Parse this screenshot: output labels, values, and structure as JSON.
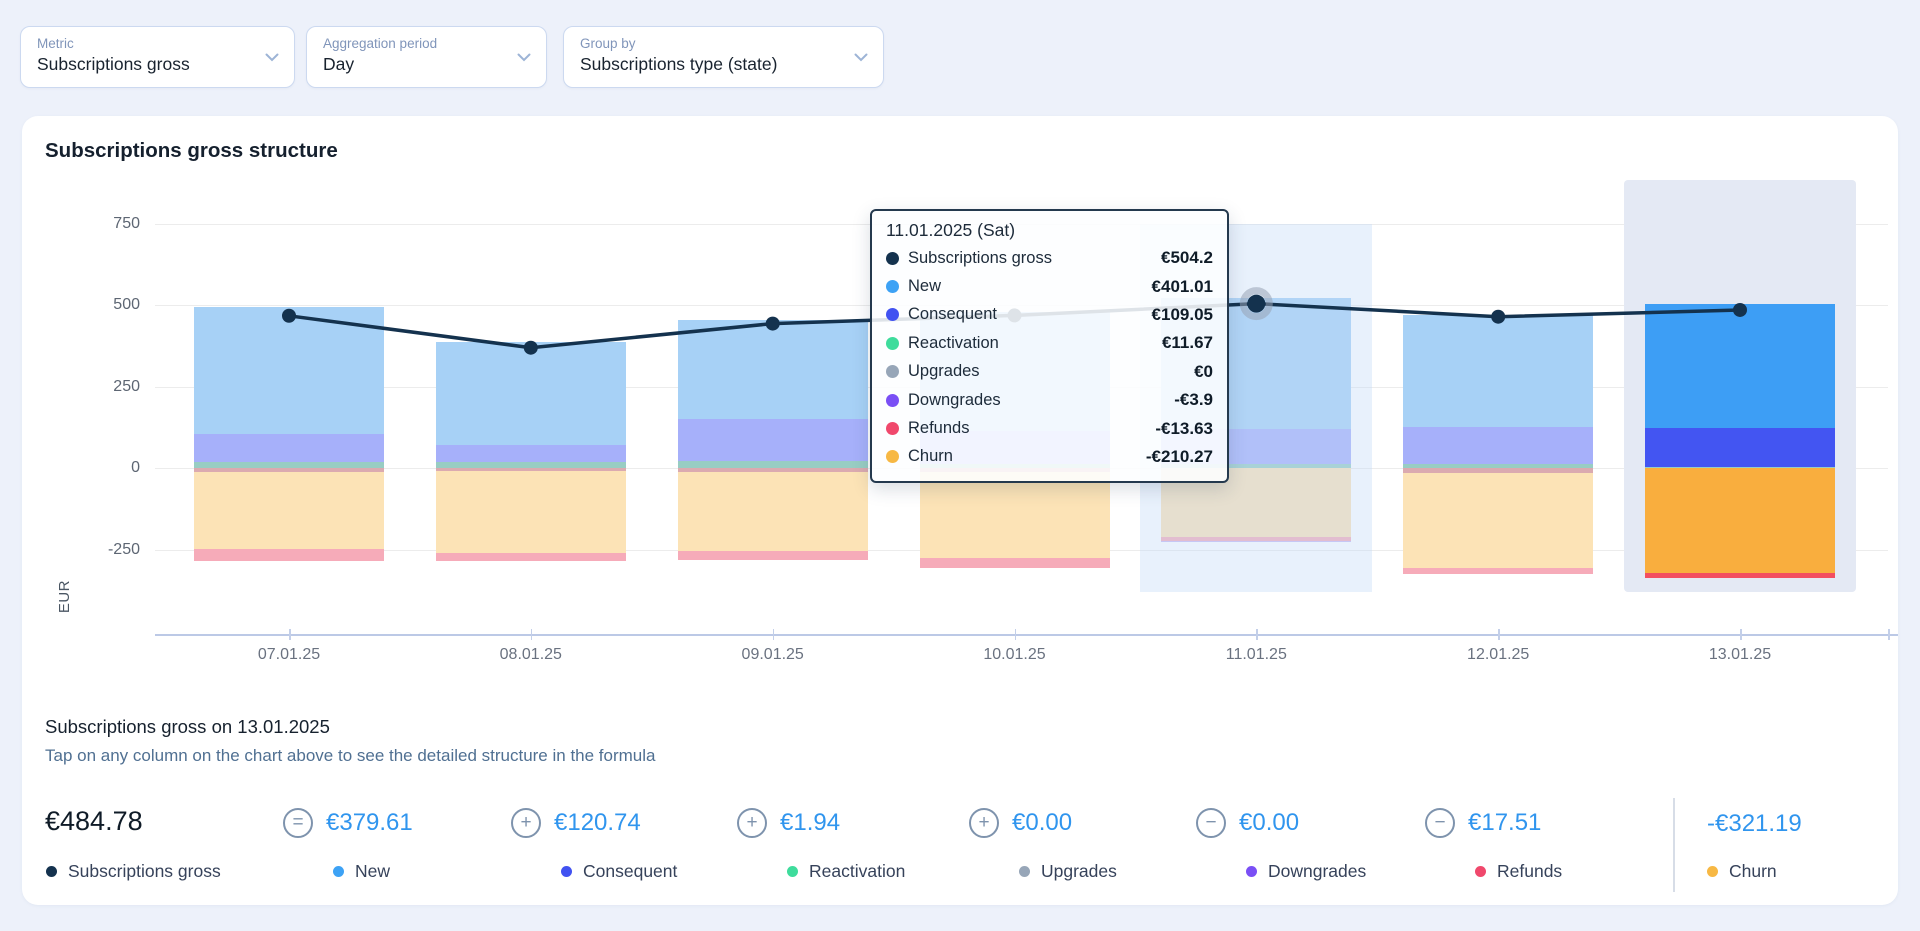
{
  "filters": [
    {
      "label": "Metric",
      "value": "Subscriptions gross"
    },
    {
      "label": "Aggregation period",
      "value": "Day"
    },
    {
      "label": "Group by",
      "value": "Subscriptions type (state)"
    }
  ],
  "card": {
    "title": "Subscriptions gross structure"
  },
  "chart_data": {
    "type": "bar",
    "stacked": true,
    "line_overlay": "Subscriptions gross",
    "categories": [
      "07.01.25",
      "08.01.25",
      "09.01.25",
      "10.01.25",
      "11.01.25",
      "12.01.25",
      "13.01.25"
    ],
    "ylabel": "EUR",
    "yticks": [
      750,
      500,
      250,
      0,
      -250
    ],
    "grid": true,
    "hovered_index": 4,
    "selected_index": 6,
    "line": {
      "name": "Subscriptions gross",
      "values": [
        467,
        369,
        443,
        468,
        504.2,
        464,
        484.78
      ]
    },
    "series_colors": {
      "gross": "#14324e",
      "new": "#3da2f5",
      "consequent": "#4152f1",
      "reactivation": "#3edc9c",
      "upgrades": "#97a6b8",
      "downgrades": "#7a4ff5",
      "refunds": "#f0486c",
      "churn": "#f7b844"
    },
    "bar_palette": {
      "new_pale": "#a7d1f6",
      "consequent_pale": "#a6b0fa",
      "reactivation_pale": "#98cdc3",
      "downgrades_rose": "#dbaab0",
      "downgrades_pale": "#c9bcf4",
      "churn_pale": "#fce3b6",
      "refunds_pale": "#f6abb9",
      "new_bright": "#3d9ef5",
      "consequent_bright": "#4355f2",
      "churn_bright": "#f9ae3e",
      "refunds_bright": "#f34e60"
    },
    "bars": [
      {
        "date": "07.01.25",
        "segments": [
          [
            "new",
            493,
            103,
            "new_pale"
          ],
          [
            "consequent",
            103,
            19,
            "consequent_pale"
          ],
          [
            "reactivation",
            19,
            0,
            "reactivation_pale"
          ],
          [
            "downgrades",
            0,
            -12,
            "downgrades_rose"
          ],
          [
            "churn",
            -12,
            -248,
            "churn_pale"
          ],
          [
            "refunds",
            -248,
            -285,
            "refunds_pale"
          ]
        ]
      },
      {
        "date": "08.01.25",
        "segments": [
          [
            "new",
            387,
            72,
            "new_pale"
          ],
          [
            "consequent",
            72,
            18,
            "consequent_pale"
          ],
          [
            "reactivation",
            18,
            0,
            "reactivation_pale"
          ],
          [
            "downgrades",
            0,
            -10,
            "downgrades_rose"
          ],
          [
            "churn",
            -10,
            -261,
            "churn_pale"
          ],
          [
            "refunds",
            -261,
            -284,
            "refunds_pale"
          ]
        ]
      },
      {
        "date": "09.01.25",
        "segments": [
          [
            "new",
            455,
            150,
            "new_pale"
          ],
          [
            "consequent",
            150,
            22,
            "consequent_pale"
          ],
          [
            "reactivation",
            22,
            0,
            "reactivation_pale"
          ],
          [
            "downgrades",
            0,
            -12,
            "downgrades_rose"
          ],
          [
            "churn",
            -12,
            -255,
            "churn_pale"
          ],
          [
            "refunds",
            -255,
            -282,
            "refunds_pale"
          ]
        ]
      },
      {
        "date": "10.01.25",
        "segments": [
          [
            "new",
            480,
            115,
            "new_pale"
          ],
          [
            "consequent",
            115,
            12,
            "consequent_pale"
          ],
          [
            "reactivation",
            12,
            0,
            "reactivation_pale"
          ],
          [
            "downgrades",
            0,
            -12,
            "downgrades_rose"
          ],
          [
            "churn",
            -12,
            -276,
            "churn_pale"
          ],
          [
            "refunds",
            -276,
            -307,
            "refunds_pale"
          ]
        ]
      },
      {
        "date": "11.01.25",
        "segments": [
          [
            "new",
            521.7,
            120.7,
            "new_pale"
          ],
          [
            "consequent",
            120.7,
            11.7,
            "consequent_pale"
          ],
          [
            "reactivation",
            11.7,
            0,
            "reactivation_pale"
          ],
          [
            "churn",
            0,
            -210.3,
            "churn_pale"
          ],
          [
            "refunds",
            -210.3,
            -223.9,
            "refunds_pale"
          ],
          [
            "downgrades",
            -223.9,
            -227.8,
            "downgrades_pale"
          ]
        ]
      },
      {
        "date": "12.01.25",
        "segments": [
          [
            "new",
            469,
            127,
            "new_pale"
          ],
          [
            "consequent",
            127,
            12,
            "consequent_pale"
          ],
          [
            "reactivation",
            12,
            0,
            "reactivation_pale"
          ],
          [
            "downgrades",
            0,
            -16,
            "downgrades_rose"
          ],
          [
            "churn",
            -16,
            -307,
            "churn_pale"
          ],
          [
            "refunds",
            -307,
            -325,
            "refunds_pale"
          ]
        ]
      },
      {
        "date": "13.01.25",
        "segments": [
          [
            "new",
            502.3,
            122.7,
            "new_bright"
          ],
          [
            "consequent",
            122.7,
            1.9,
            "consequent_bright"
          ],
          [
            "reactivation",
            1.9,
            0,
            "reactivation_pale"
          ],
          [
            "churn",
            0,
            -321.2,
            "churn_bright"
          ],
          [
            "refunds",
            -321.2,
            -338.7,
            "refunds_bright"
          ]
        ]
      }
    ]
  },
  "tooltip": {
    "title": "11.01.2025 (Sat)",
    "rows": [
      {
        "label": "Subscriptions gross",
        "key": "gross",
        "value": "€504.2"
      },
      {
        "label": "New",
        "key": "new",
        "value": "€401.01"
      },
      {
        "label": "Consequent",
        "key": "consequent",
        "value": "€109.05"
      },
      {
        "label": "Reactivation",
        "key": "reactivation",
        "value": "€11.67"
      },
      {
        "label": "Upgrades",
        "key": "upgrades",
        "value": "€0"
      },
      {
        "label": "Downgrades",
        "key": "downgrades",
        "value": "-€3.9"
      },
      {
        "label": "Refunds",
        "key": "refunds",
        "value": "-€13.63"
      },
      {
        "label": "Churn",
        "key": "churn",
        "value": "-€210.27"
      }
    ]
  },
  "detail": {
    "heading": "Subscriptions gross on 13.01.2025",
    "hint": "Tap on any column on the chart above to see the detailed structure in the formula"
  },
  "formula": {
    "total": {
      "value": "€484.78",
      "label": "Subscriptions gross",
      "key": "gross"
    },
    "items": [
      {
        "op": "=",
        "value": "€379.61",
        "label": "New",
        "key": "new"
      },
      {
        "op": "+",
        "value": "€120.74",
        "label": "Consequent",
        "key": "consequent"
      },
      {
        "op": "+",
        "value": "€1.94",
        "label": "Reactivation",
        "key": "reactivation"
      },
      {
        "op": "+",
        "value": "€0.00",
        "label": "Upgrades",
        "key": "upgrades"
      },
      {
        "op": "−",
        "value": "€0.00",
        "label": "Downgrades",
        "key": "downgrades"
      },
      {
        "op": "−",
        "value": "€17.51",
        "label": "Refunds",
        "key": "refunds"
      }
    ],
    "churn": {
      "value": "-€321.19",
      "label": "Churn",
      "key": "churn"
    }
  },
  "accent_colors": {
    "formula_value_blue": "#3095ee",
    "hint_blue": "#507092"
  }
}
